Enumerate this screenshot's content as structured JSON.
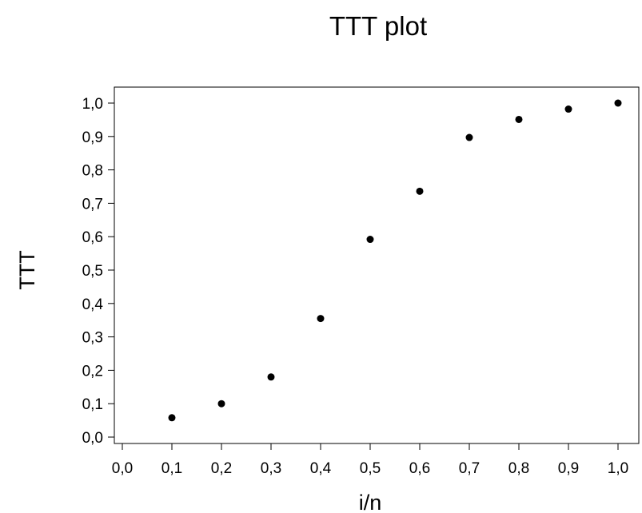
{
  "chart_data": {
    "type": "scatter",
    "title": "TTT plot",
    "xlabel": "i/n",
    "ylabel": "TTT",
    "xlim": [
      0.0,
      1.0
    ],
    "ylim": [
      0.0,
      1.0
    ],
    "x_ticks": [
      "0,0",
      "0,1",
      "0,2",
      "0,3",
      "0,4",
      "0,5",
      "0,6",
      "0,7",
      "0,8",
      "0,9",
      "1,0"
    ],
    "y_ticks": [
      "0,0",
      "0,1",
      "0,2",
      "0,3",
      "0,4",
      "0,5",
      "0,6",
      "0,7",
      "0,8",
      "0,9",
      "1,0"
    ],
    "grid": false,
    "legend": "none",
    "marker_color": "#000000",
    "x": [
      0.1,
      0.2,
      0.3,
      0.4,
      0.5,
      0.6,
      0.7,
      0.8,
      0.9,
      1.0
    ],
    "y": [
      0.058,
      0.1,
      0.18,
      0.355,
      0.592,
      0.736,
      0.897,
      0.951,
      0.982,
      1.0
    ]
  }
}
